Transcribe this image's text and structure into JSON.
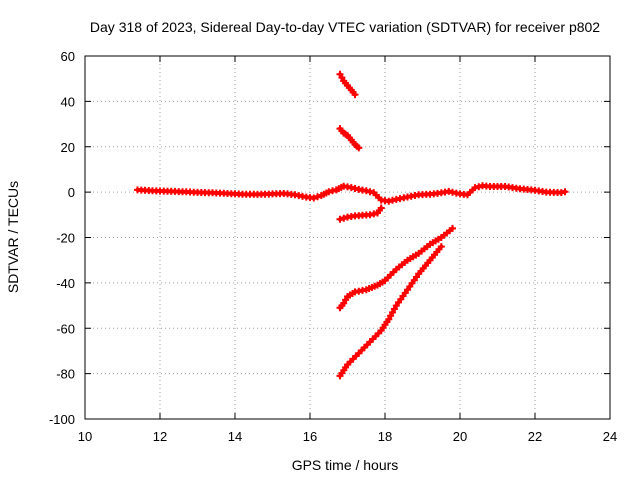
{
  "chart_data": {
    "type": "scatter",
    "title": "Day 318 of 2023, Sidereal Day-to-day VTEC variation (SDTVAR) for receiver p802",
    "xlabel": "GPS time / hours",
    "ylabel": "SDTVAR / TECUs",
    "xlim": [
      10,
      24
    ],
    "ylim": [
      -100,
      60
    ],
    "xticks": [
      10,
      12,
      14,
      16,
      18,
      20,
      22,
      24
    ],
    "yticks": [
      -100,
      -80,
      -60,
      -40,
      -20,
      0,
      20,
      40,
      60
    ],
    "grid": true,
    "marker": "plus",
    "series": [
      {
        "name": "main-track",
        "color": "#ff0000",
        "points": [
          [
            11.4,
            1.0
          ],
          [
            11.8,
            0.6
          ],
          [
            12.2,
            0.4
          ],
          [
            12.6,
            0.2
          ],
          [
            13.0,
            -0.1
          ],
          [
            13.4,
            -0.3
          ],
          [
            13.8,
            -0.6
          ],
          [
            14.2,
            -0.9
          ],
          [
            14.6,
            -1.0
          ],
          [
            15.0,
            -0.8
          ],
          [
            15.3,
            -0.6
          ],
          [
            15.6,
            -1.2
          ],
          [
            15.9,
            -2.2
          ],
          [
            16.1,
            -2.6
          ],
          [
            16.3,
            -1.5
          ],
          [
            16.5,
            0.2
          ],
          [
            16.7,
            1.0
          ],
          [
            16.9,
            2.6
          ],
          [
            17.1,
            2.0
          ],
          [
            17.3,
            1.2
          ],
          [
            17.5,
            0.6
          ],
          [
            17.7,
            -0.2
          ],
          [
            17.9,
            -3.5
          ],
          [
            18.1,
            -4.0
          ],
          [
            18.3,
            -3.2
          ],
          [
            18.5,
            -2.5
          ],
          [
            18.7,
            -1.8
          ],
          [
            18.9,
            -1.2
          ],
          [
            19.1,
            -1.0
          ],
          [
            19.3,
            -0.8
          ],
          [
            19.5,
            -0.3
          ],
          [
            19.7,
            0.3
          ],
          [
            20.0,
            -0.8
          ],
          [
            20.2,
            -1.2
          ],
          [
            20.4,
            2.0
          ],
          [
            20.6,
            2.8
          ],
          [
            20.8,
            2.5
          ],
          [
            21.2,
            2.5
          ],
          [
            21.6,
            1.5
          ],
          [
            22.0,
            0.8
          ],
          [
            22.3,
            0.0
          ],
          [
            22.7,
            -0.2
          ],
          [
            22.8,
            0.2
          ]
        ]
      },
      {
        "name": "upper-arc-1",
        "color": "#ff0000",
        "points": [
          [
            16.8,
            52
          ],
          [
            16.9,
            49
          ],
          [
            17.0,
            47
          ],
          [
            17.1,
            45
          ],
          [
            17.2,
            43
          ]
        ]
      },
      {
        "name": "upper-arc-2",
        "color": "#ff0000",
        "points": [
          [
            16.8,
            28
          ],
          [
            16.9,
            26
          ],
          [
            17.0,
            25
          ],
          [
            17.1,
            23
          ],
          [
            17.2,
            21
          ],
          [
            17.3,
            19.5
          ]
        ]
      },
      {
        "name": "lower-arc-1",
        "color": "#ff0000",
        "points": [
          [
            16.8,
            -12
          ],
          [
            17.0,
            -11
          ],
          [
            17.2,
            -10.5
          ],
          [
            17.4,
            -10.2
          ],
          [
            17.6,
            -10
          ],
          [
            17.8,
            -9.2
          ],
          [
            17.9,
            -7
          ]
        ]
      },
      {
        "name": "descending-arc-1",
        "color": "#ff0000",
        "points": [
          [
            16.8,
            -51
          ],
          [
            16.9,
            -49
          ],
          [
            17.0,
            -46
          ],
          [
            17.2,
            -44
          ],
          [
            17.5,
            -43
          ],
          [
            17.8,
            -41
          ],
          [
            18.0,
            -39
          ],
          [
            18.3,
            -34
          ],
          [
            18.6,
            -30
          ],
          [
            18.9,
            -27
          ],
          [
            19.2,
            -23
          ],
          [
            19.5,
            -20
          ],
          [
            19.8,
            -16
          ]
        ]
      },
      {
        "name": "descending-arc-2",
        "color": "#ff0000",
        "points": [
          [
            16.8,
            -81
          ],
          [
            17.0,
            -76
          ],
          [
            17.3,
            -71
          ],
          [
            17.6,
            -66
          ],
          [
            17.9,
            -61
          ],
          [
            18.1,
            -56
          ],
          [
            18.3,
            -50
          ],
          [
            18.6,
            -43
          ],
          [
            18.9,
            -36
          ],
          [
            19.2,
            -30
          ],
          [
            19.5,
            -24
          ]
        ]
      }
    ]
  }
}
